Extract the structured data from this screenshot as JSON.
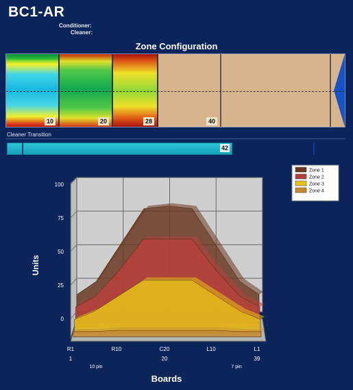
{
  "header": {
    "title": "BC1-AR",
    "conditioner_label": "Conditioner:",
    "cleaner_label": "Cleaner:"
  },
  "zone_config": {
    "title": "Zone Configuration",
    "segments": [
      {
        "label": "10"
      },
      {
        "label": "20"
      },
      {
        "label": "28"
      },
      {
        "label": "40"
      }
    ]
  },
  "cleaner_transition": {
    "label": "Cleaner Transition",
    "value": "42",
    "fill_fraction": 0.666
  },
  "colors": {
    "background": "#0b2459",
    "zone1": "#6b3a22",
    "zone2": "#b8403a",
    "zone3": "#e8c21a",
    "zone4": "#c88a2a",
    "transition": "#1fb5cc"
  },
  "chart_data": {
    "type": "area",
    "title": "",
    "xlabel": "Boards",
    "ylabel": "Units",
    "ylim": [
      0,
      100
    ],
    "yticks": [
      "0",
      "25",
      "50",
      "75",
      "100"
    ],
    "xticks_primary": [
      "R1",
      "R10",
      "C20",
      "L10",
      "L1"
    ],
    "xticks_secondary": [
      "1",
      "20",
      "39"
    ],
    "xticks_pin": [
      "10 pin",
      "7 pin"
    ],
    "legend_position": "top-right",
    "legend": [
      "Zone 1",
      "Zone 2",
      "Zone 3",
      "Zone 4"
    ],
    "x": [
      1,
      5,
      10,
      15,
      20,
      25,
      30,
      35,
      39
    ],
    "series": [
      {
        "name": "Zone 1",
        "values": [
          22,
          32,
          60,
          88,
          90,
          88,
          60,
          32,
          22
        ]
      },
      {
        "name": "Zone 2",
        "values": [
          16,
          24,
          44,
          68,
          68,
          68,
          44,
          24,
          16
        ]
      },
      {
        "name": "Zone 3",
        "values": [
          10,
          16,
          28,
          40,
          40,
          40,
          28,
          16,
          10
        ]
      },
      {
        "name": "Zone 4",
        "values": [
          4,
          4,
          5,
          5,
          5,
          5,
          5,
          4,
          4
        ]
      }
    ]
  }
}
